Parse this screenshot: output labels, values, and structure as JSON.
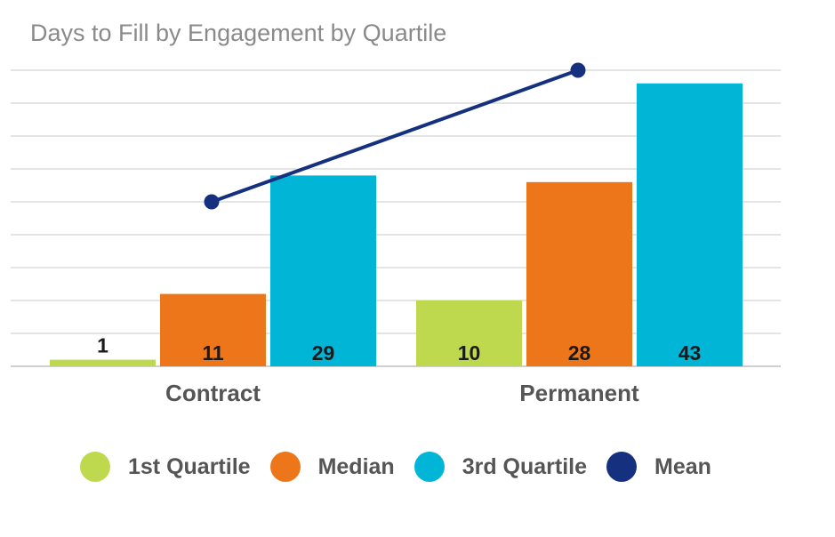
{
  "chart_data": {
    "type": "bar",
    "title": "Days to Fill by Engagement by Quartile",
    "categories": [
      "Contract",
      "Permanent"
    ],
    "series": [
      {
        "name": "1st Quartile",
        "values": [
          1,
          10
        ],
        "color": "#bfd94f"
      },
      {
        "name": "Median",
        "values": [
          11,
          28
        ],
        "color": "#ec7619"
      },
      {
        "name": "3rd Quartile",
        "values": [
          29,
          43
        ],
        "color": "#00b5d6"
      }
    ],
    "line_series": {
      "name": "Mean",
      "values": [
        25,
        45
      ],
      "color": "#14307e"
    },
    "ylim": [
      0,
      45
    ],
    "grid": true,
    "legend": "bottom"
  }
}
